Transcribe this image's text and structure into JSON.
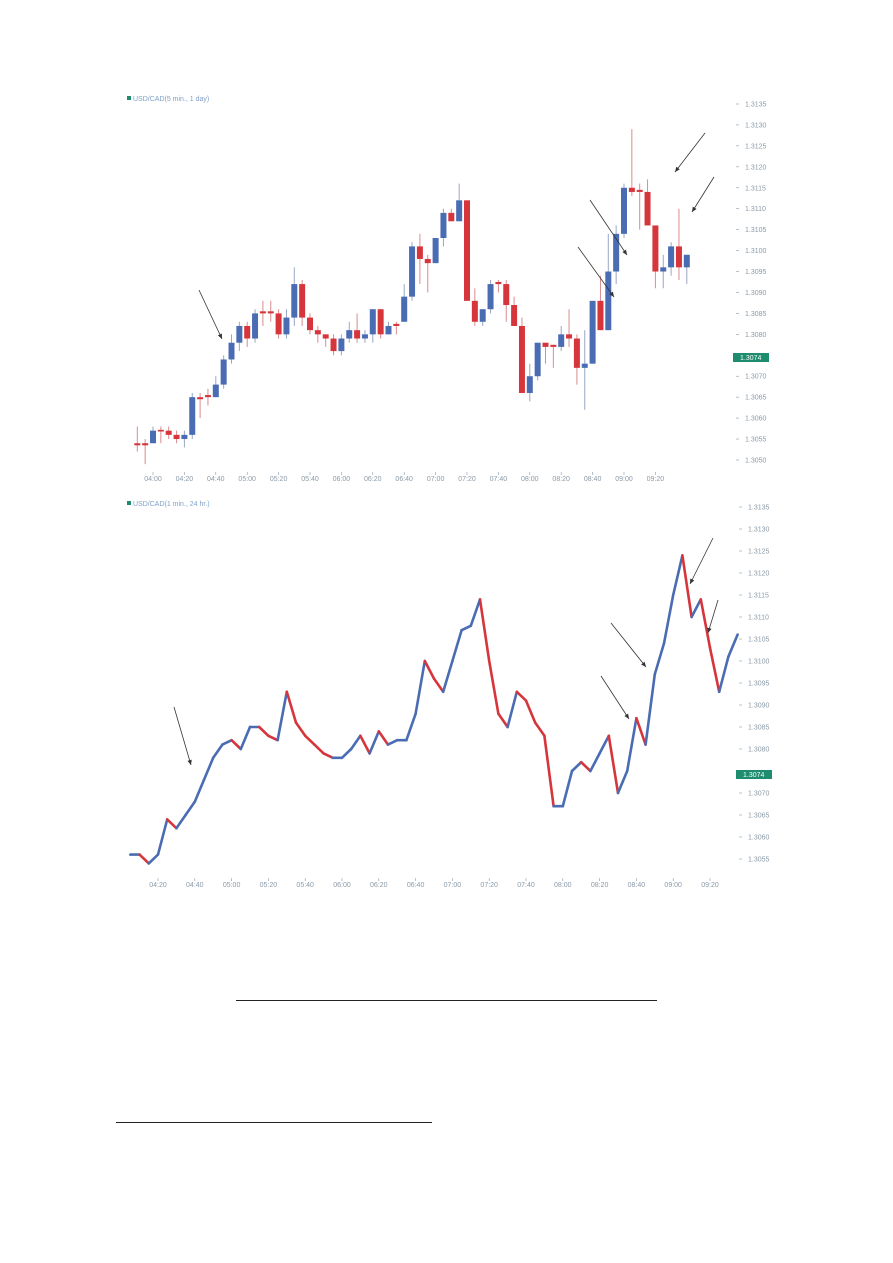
{
  "colors": {
    "up": "#4a6cb3",
    "down": "#d6363b",
    "badge": "#1e8c6e",
    "arrow": "#333333",
    "axis": "#8a9aa8"
  },
  "chart_data": [
    {
      "type": "candlestick",
      "title": "USD/CAD(5 min., 1 day)",
      "y_ticks": [
        "1.3135",
        "1.3130",
        "1.3125",
        "1.3120",
        "1.3115",
        "1.3110",
        "1.3105",
        "1.3100",
        "1.3095",
        "1.3090",
        "1.3085",
        "1.3080",
        "1.3075",
        "1.3070",
        "1.3065",
        "1.3060",
        "1.3055",
        "1.3050"
      ],
      "x_ticks": [
        "04:00",
        "04:20",
        "04:40",
        "05:00",
        "05:20",
        "05:40",
        "06:00",
        "06:20",
        "06:40",
        "07:00",
        "07:20",
        "07:40",
        "08:00",
        "08:20",
        "08:40",
        "09:00",
        "09:20"
      ],
      "ylim": [
        1.305,
        1.3135
      ],
      "last_price": "1.3074",
      "grid": false,
      "candles_fields": [
        "time",
        "open",
        "high",
        "low",
        "close"
      ],
      "candles": [
        [
          "03:50",
          1.3054,
          1.3058,
          1.3052,
          1.30535
        ],
        [
          "03:55",
          1.3054,
          1.3055,
          1.3049,
          1.30535
        ],
        [
          "04:00",
          1.3054,
          1.3058,
          1.3054,
          1.3057
        ],
        [
          "04:05",
          1.30572,
          1.3058,
          1.3054,
          1.30568
        ],
        [
          "04:10",
          1.3057,
          1.3058,
          1.3055,
          1.3056
        ],
        [
          "04:15",
          1.3056,
          1.3057,
          1.3054,
          1.3055
        ],
        [
          "04:20",
          1.3055,
          1.3057,
          1.3053,
          1.3056
        ],
        [
          "04:25",
          1.3056,
          1.3066,
          1.3055,
          1.3065
        ],
        [
          "04:30",
          1.3065,
          1.3066,
          1.306,
          1.30645
        ],
        [
          "04:35",
          1.30655,
          1.3067,
          1.3063,
          1.3065
        ],
        [
          "04:40",
          1.3065,
          1.307,
          1.3065,
          1.3068
        ],
        [
          "04:45",
          1.3068,
          1.3075,
          1.3067,
          1.3074
        ],
        [
          "04:50",
          1.3074,
          1.308,
          1.3073,
          1.3078
        ],
        [
          "04:55",
          1.3078,
          1.3083,
          1.3076,
          1.3082
        ],
        [
          "05:00",
          1.3082,
          1.3083,
          1.3077,
          1.3079
        ],
        [
          "05:05",
          1.3079,
          1.3086,
          1.3078,
          1.3085
        ],
        [
          "05:10",
          1.30855,
          1.3088,
          1.3082,
          1.3085
        ],
        [
          "05:15",
          1.30855,
          1.3088,
          1.3083,
          1.3085
        ],
        [
          "05:20",
          1.3085,
          1.3086,
          1.3079,
          1.308
        ],
        [
          "05:25",
          1.308,
          1.3086,
          1.3079,
          1.3084
        ],
        [
          "05:30",
          1.3084,
          1.3096,
          1.3082,
          1.3092
        ],
        [
          "05:35",
          1.3092,
          1.3093,
          1.3082,
          1.3084
        ],
        [
          "05:40",
          1.3084,
          1.3085,
          1.308,
          1.3081
        ],
        [
          "05:45",
          1.3081,
          1.3082,
          1.3078,
          1.308
        ],
        [
          "05:50",
          1.308,
          1.308,
          1.3077,
          1.3079
        ],
        [
          "05:55",
          1.3079,
          1.308,
          1.3075,
          1.3076
        ],
        [
          "06:00",
          1.3076,
          1.308,
          1.3075,
          1.3079
        ],
        [
          "06:05",
          1.3079,
          1.3083,
          1.3078,
          1.3081
        ],
        [
          "06:10",
          1.3081,
          1.3085,
          1.3078,
          1.3079
        ],
        [
          "06:15",
          1.3079,
          1.3081,
          1.3078,
          1.308
        ],
        [
          "06:20",
          1.308,
          1.3086,
          1.3078,
          1.3086
        ],
        [
          "06:25",
          1.3086,
          1.3086,
          1.3079,
          1.308
        ],
        [
          "06:30",
          1.308,
          1.3083,
          1.308,
          1.3082
        ],
        [
          "06:35",
          1.30825,
          1.3083,
          1.308,
          1.3082
        ],
        [
          "06:40",
          1.3083,
          1.3092,
          1.3083,
          1.3089
        ],
        [
          "06:45",
          1.3089,
          1.3102,
          1.3088,
          1.3101
        ],
        [
          "06:50",
          1.3101,
          1.3104,
          1.3092,
          1.3098
        ],
        [
          "06:55",
          1.3098,
          1.3099,
          1.309,
          1.3097
        ],
        [
          "07:00",
          1.3097,
          1.3103,
          1.3097,
          1.3103
        ],
        [
          "07:05",
          1.3103,
          1.311,
          1.3101,
          1.3109
        ],
        [
          "07:10",
          1.3109,
          1.311,
          1.3107,
          1.3107
        ],
        [
          "07:15",
          1.3107,
          1.3116,
          1.3107,
          1.3112
        ],
        [
          "07:20",
          1.3112,
          1.3112,
          1.3088,
          1.3088
        ],
        [
          "07:25",
          1.3088,
          1.3091,
          1.3082,
          1.3083
        ],
        [
          "07:30",
          1.3083,
          1.3086,
          1.3082,
          1.3086
        ],
        [
          "07:35",
          1.3086,
          1.3093,
          1.3085,
          1.3092
        ],
        [
          "07:40",
          1.30925,
          1.3093,
          1.309,
          1.3092
        ],
        [
          "07:45",
          1.3092,
          1.3093,
          1.3083,
          1.3087
        ],
        [
          "07:50",
          1.3087,
          1.3089,
          1.3082,
          1.3082
        ],
        [
          "07:55",
          1.3082,
          1.3084,
          1.3066,
          1.3066
        ],
        [
          "08:00",
          1.3066,
          1.3073,
          1.3064,
          1.307
        ],
        [
          "08:05",
          1.307,
          1.3078,
          1.3069,
          1.3078
        ],
        [
          "08:10",
          1.3078,
          1.3078,
          1.3073,
          1.3077
        ],
        [
          "08:15",
          1.30775,
          1.3077,
          1.3072,
          1.3077
        ],
        [
          "08:20",
          1.3077,
          1.3082,
          1.3076,
          1.308
        ],
        [
          "08:25",
          1.308,
          1.3086,
          1.3077,
          1.3079
        ],
        [
          "08:30",
          1.3079,
          1.308,
          1.3068,
          1.3072
        ],
        [
          "08:35",
          1.3072,
          1.3081,
          1.3062,
          1.3073
        ],
        [
          "08:40",
          1.3073,
          1.3088,
          1.3073,
          1.3088
        ],
        [
          "08:45",
          1.3088,
          1.3094,
          1.3081,
          1.3081
        ],
        [
          "08:50",
          1.3081,
          1.3104,
          1.3081,
          1.3095
        ],
        [
          "08:55",
          1.3095,
          1.3106,
          1.3092,
          1.3104
        ],
        [
          "09:00",
          1.3104,
          1.3116,
          1.3103,
          1.3115
        ],
        [
          "09:05",
          1.3115,
          1.3129,
          1.3113,
          1.3114
        ],
        [
          "09:10",
          1.31145,
          1.3116,
          1.3105,
          1.3114
        ],
        [
          "09:15",
          1.3114,
          1.3117,
          1.3106,
          1.3106
        ],
        [
          "09:20",
          1.3106,
          1.3106,
          1.3091,
          1.3095
        ],
        [
          "09:25",
          1.3095,
          1.3099,
          1.3091,
          1.3096
        ],
        [
          "09:30",
          1.3096,
          1.3102,
          1.3094,
          1.3101
        ],
        [
          "09:35",
          1.3101,
          1.311,
          1.3093,
          1.3096
        ],
        [
          "09:40",
          1.3096,
          1.3099,
          1.3092,
          1.3099
        ]
      ]
    },
    {
      "type": "line",
      "title": "USD/CAD(1 min., 24 hr.)",
      "y_ticks": [
        "1.3135",
        "1.3130",
        "1.3125",
        "1.3120",
        "1.3115",
        "1.3110",
        "1.3105",
        "1.3100",
        "1.3095",
        "1.3090",
        "1.3085",
        "1.3080",
        "1.3075",
        "1.3070",
        "1.3065",
        "1.3060",
        "1.3055"
      ],
      "x_ticks": [
        "04:20",
        "04:40",
        "05:00",
        "05:20",
        "05:40",
        "06:00",
        "06:20",
        "06:40",
        "07:00",
        "07:20",
        "07:40",
        "08:00",
        "08:20",
        "08:40",
        "09:00",
        "09:20"
      ],
      "ylim": [
        1.3052,
        1.3135
      ],
      "last_price": "1.3074",
      "grid": false,
      "x": [
        "04:05",
        "04:10",
        "04:15",
        "04:20",
        "04:25",
        "04:30",
        "04:35",
        "04:40",
        "04:45",
        "04:50",
        "04:55",
        "05:00",
        "05:05",
        "05:10",
        "05:15",
        "05:20",
        "05:25",
        "05:30",
        "05:35",
        "05:40",
        "05:45",
        "05:50",
        "05:55",
        "06:00",
        "06:05",
        "06:10",
        "06:15",
        "06:20",
        "06:25",
        "06:30",
        "06:35",
        "06:40",
        "06:45",
        "06:50",
        "06:55",
        "07:00",
        "07:05",
        "07:10",
        "07:15",
        "07:20",
        "07:25",
        "07:30",
        "07:35",
        "07:40",
        "07:45",
        "07:50",
        "07:55",
        "08:00",
        "08:05",
        "08:10",
        "08:15",
        "08:20",
        "08:25",
        "08:30",
        "08:35",
        "08:40",
        "08:45",
        "08:50",
        "08:55",
        "09:00",
        "09:05",
        "09:10",
        "09:15",
        "09:20",
        "09:25",
        "09:30",
        "09:35"
      ],
      "values": [
        1.3056,
        1.3056,
        1.3054,
        1.3056,
        1.3064,
        1.3062,
        1.3065,
        1.3068,
        1.3073,
        1.3078,
        1.3081,
        1.3082,
        1.308,
        1.3085,
        1.3085,
        1.3083,
        1.3082,
        1.3093,
        1.3086,
        1.3083,
        1.3081,
        1.3079,
        1.3078,
        1.3078,
        1.308,
        1.3083,
        1.3079,
        1.3084,
        1.3081,
        1.3082,
        1.3082,
        1.3088,
        1.31,
        1.3096,
        1.3093,
        1.31,
        1.3107,
        1.3108,
        1.3114,
        1.31,
        1.3088,
        1.3085,
        1.3093,
        1.3091,
        1.3086,
        1.3083,
        1.3067,
        1.3067,
        1.3075,
        1.3077,
        1.3075,
        1.3079,
        1.3083,
        1.307,
        1.3075,
        1.3087,
        1.3081,
        1.3097,
        1.3104,
        1.3115,
        1.3124,
        1.311,
        1.3114,
        1.3103,
        1.3093,
        1.3101,
        1.3106
      ]
    }
  ]
}
